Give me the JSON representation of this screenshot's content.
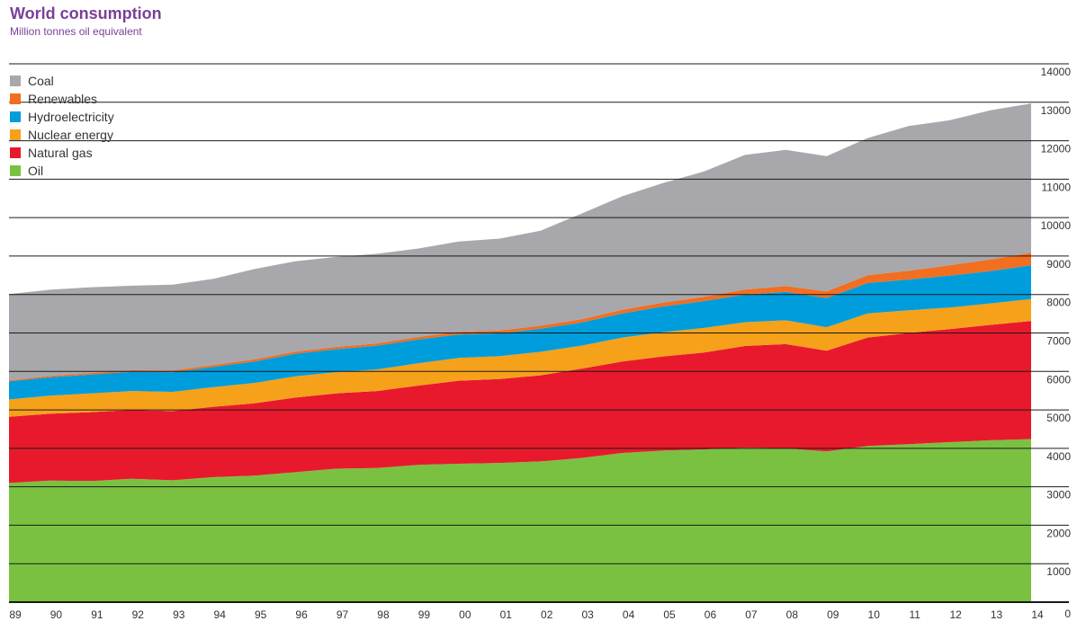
{
  "chart_data": {
    "type": "area",
    "stacked": true,
    "title": "World consumption",
    "subtitle": "Million tonnes oil equivalent",
    "x": [
      "89",
      "90",
      "91",
      "92",
      "93",
      "94",
      "95",
      "96",
      "97",
      "98",
      "99",
      "00",
      "01",
      "02",
      "03",
      "04",
      "05",
      "06",
      "07",
      "08",
      "09",
      "10",
      "11",
      "12",
      "13",
      "14"
    ],
    "ylim": [
      0,
      14000
    ],
    "yticks": [
      0,
      1000,
      2000,
      3000,
      4000,
      5000,
      6000,
      7000,
      8000,
      9000,
      10000,
      11000,
      12000,
      13000,
      14000
    ],
    "ytick_labels": [
      "0",
      "1000",
      "2000",
      "3000",
      "4000",
      "5000",
      "6000",
      "7000",
      "8000",
      "9000",
      "10000",
      "11000",
      "12000",
      "13000",
      "14000"
    ],
    "y_axis_position": "right",
    "legend_position": "top-left",
    "series": [
      {
        "name": "Oil",
        "color": "#7ac142",
        "values": [
          3100,
          3160,
          3150,
          3210,
          3170,
          3250,
          3290,
          3380,
          3470,
          3490,
          3570,
          3600,
          3620,
          3660,
          3750,
          3880,
          3940,
          3970,
          4020,
          4000,
          3920,
          4060,
          4110,
          4160,
          4210,
          4240
        ]
      },
      {
        "name": "Natural gas",
        "color": "#e8192c",
        "values": [
          1720,
          1740,
          1790,
          1790,
          1800,
          1830,
          1880,
          1940,
          1960,
          2000,
          2060,
          2160,
          2180,
          2240,
          2320,
          2380,
          2450,
          2520,
          2640,
          2710,
          2620,
          2820,
          2890,
          2940,
          3000,
          3070
        ]
      },
      {
        "name": "Nuclear energy",
        "color": "#f6a11a",
        "values": [
          450,
          470,
          490,
          490,
          500,
          510,
          530,
          550,
          550,
          560,
          580,
          590,
          600,
          610,
          600,
          620,
          630,
          640,
          620,
          620,
          610,
          630,
          590,
          560,
          560,
          570
        ]
      },
      {
        "name": "Hydroelectricity",
        "color": "#009ddc",
        "values": [
          470,
          480,
          490,
          500,
          510,
          530,
          560,
          590,
          600,
          620,
          620,
          610,
          590,
          600,
          600,
          630,
          670,
          700,
          720,
          740,
          760,
          790,
          800,
          830,
          840,
          880
        ]
      },
      {
        "name": "Renewables",
        "color": "#f26e21",
        "values": [
          30,
          35,
          40,
          40,
          45,
          48,
          52,
          55,
          58,
          60,
          65,
          70,
          75,
          80,
          85,
          95,
          100,
          110,
          130,
          150,
          170,
          200,
          230,
          270,
          300,
          330
        ]
      },
      {
        "name": "Coal",
        "color": "#a8a7ab",
        "values": [
          2240,
          2240,
          2230,
          2200,
          2230,
          2240,
          2350,
          2350,
          2340,
          2330,
          2300,
          2350,
          2390,
          2470,
          2750,
          2950,
          3110,
          3260,
          3500,
          3540,
          3520,
          3570,
          3760,
          3770,
          3880,
          3880
        ]
      }
    ]
  }
}
